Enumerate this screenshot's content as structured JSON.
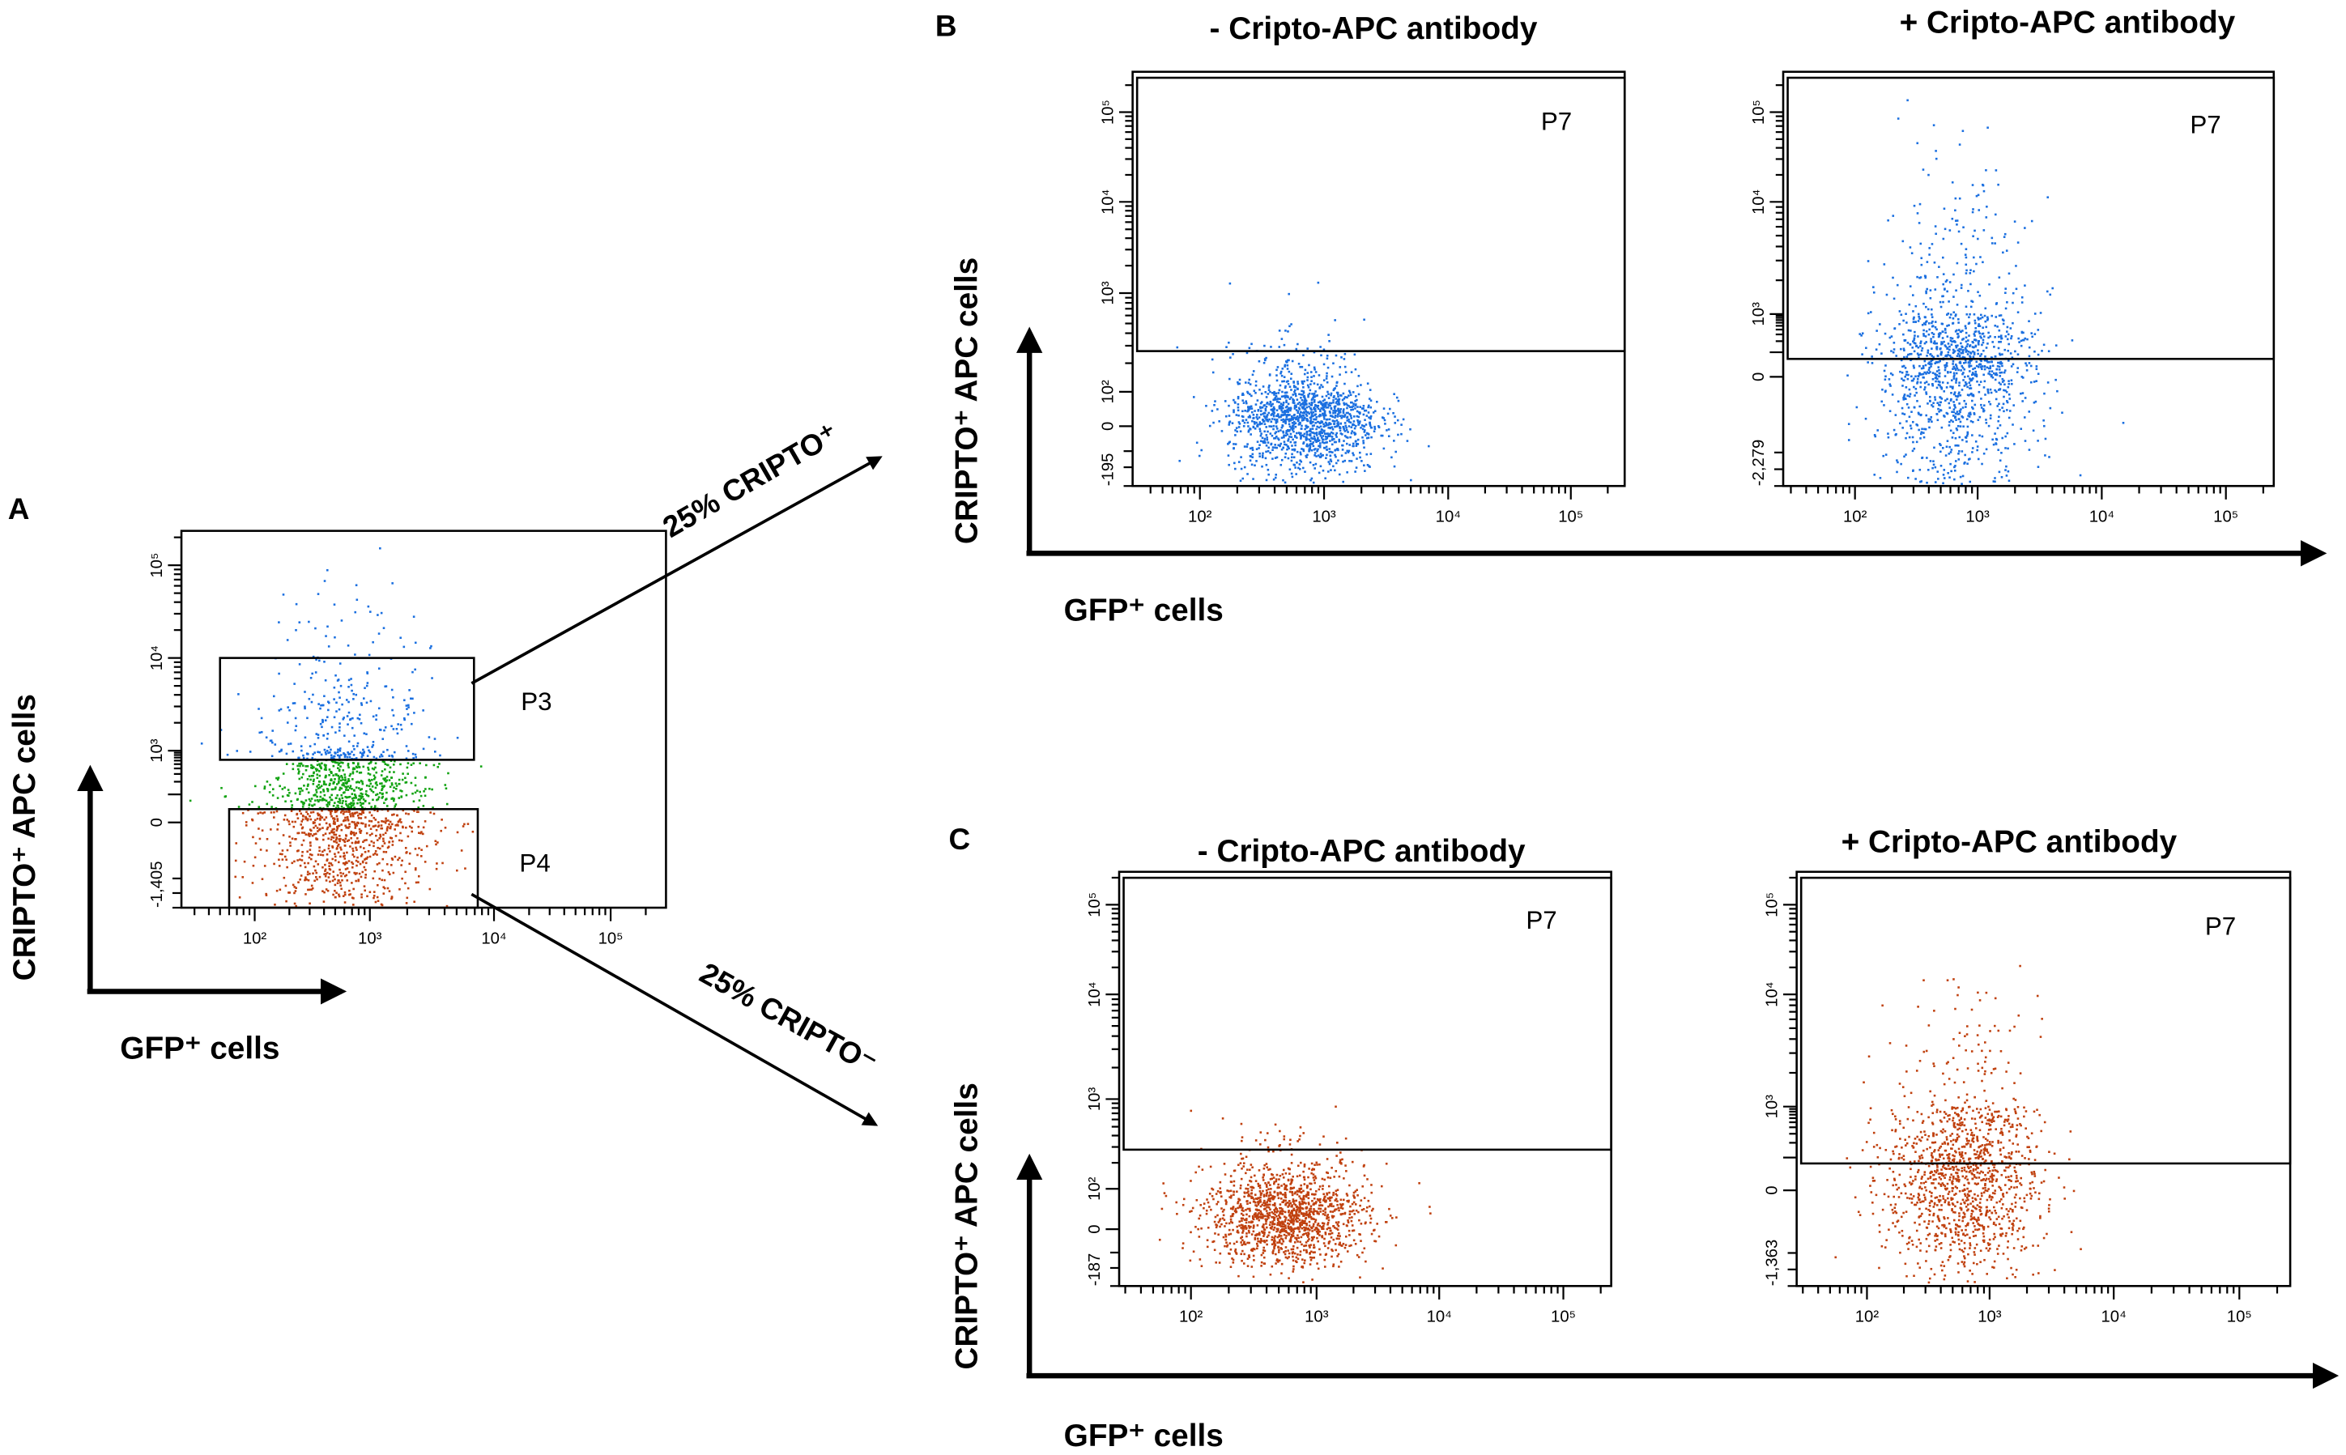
{
  "panels": {
    "A": {
      "letter": "A",
      "arrow_up_label": "25% CRIPTO⁺",
      "arrow_down_label": "25% CRIPTO⁻",
      "y_axis_label": "CRIPTO⁺ APC cells",
      "x_axis_label": "GFP⁺ cells"
    },
    "B": {
      "letter": "B",
      "y_axis_label": "CRIPTO⁺ APC cells",
      "x_axis_label": "GFP⁺ cells"
    },
    "C": {
      "letter": "C",
      "y_axis_label": "CRIPTO⁺ APC cells",
      "x_axis_label": "GFP⁺ cells"
    }
  },
  "colors": {
    "high": "#1a6fe0",
    "mid": "#12a312",
    "low": "#c0410f",
    "axis": "#000000"
  },
  "chart_data": [
    {
      "id": "A",
      "type": "scatter",
      "title": "",
      "x_scale": "log",
      "y_scale": "biexponential",
      "x_ticks": [
        {
          "value": 100,
          "label": "10²"
        },
        {
          "value": 1000,
          "label": "10³"
        },
        {
          "value": 10000,
          "label": "10⁴"
        },
        {
          "value": 100000,
          "label": "10⁵"
        }
      ],
      "y_ticks": [
        {
          "value": -1405,
          "label": "-1,405"
        },
        {
          "value": 0,
          "label": "0"
        },
        {
          "value": 1000,
          "label": "10³"
        },
        {
          "value": 10000,
          "label": "10⁴"
        },
        {
          "value": 100000,
          "label": "10⁵"
        }
      ],
      "gates": [
        {
          "label": "P3",
          "x_range": [
            50,
            6900
          ],
          "y_range": [
            625,
            10000
          ]
        },
        {
          "label": "P4",
          "x_range": [
            60,
            7400
          ],
          "y_range": [
            -1405,
            37
          ]
        }
      ],
      "population": {
        "events": 1600,
        "x_range": [
          155,
          2300
        ],
        "y_range": [
          -1200,
          4700
        ],
        "coloring": "by-gate: P3 blue, between gates green, P4 red"
      }
    },
    {
      "id": "B1",
      "type": "scatter",
      "title": "- Cripto-APC antibody",
      "x_scale": "log",
      "y_scale": "biexponential",
      "x_ticks": [
        {
          "value": 100,
          "label": "10²"
        },
        {
          "value": 1000,
          "label": "10³"
        },
        {
          "value": 10000,
          "label": "10⁴"
        },
        {
          "value": 100000,
          "label": "10⁵"
        }
      ],
      "y_ticks": [
        {
          "value": -195,
          "label": "-195"
        },
        {
          "value": 0,
          "label": "0"
        },
        {
          "value": 100,
          "label": "10²"
        },
        {
          "value": 1000,
          "label": "10³"
        },
        {
          "value": 10000,
          "label": "10⁴"
        },
        {
          "value": 100000,
          "label": "10⁵"
        }
      ],
      "gates": [
        {
          "label": "P7",
          "y_min": 265
        }
      ],
      "population": {
        "events": 1400,
        "x_range": [
          220,
          2200
        ],
        "y_range": [
          -90,
          180
        ],
        "color": "high"
      }
    },
    {
      "id": "B2",
      "type": "scatter",
      "title": "+ Cripto-APC antibody",
      "x_scale": "log",
      "y_scale": "biexponential",
      "x_ticks": [
        {
          "value": 100,
          "label": "10²"
        },
        {
          "value": 1000,
          "label": "10³"
        },
        {
          "value": 10000,
          "label": "10⁴"
        },
        {
          "value": 100000,
          "label": "10⁵"
        }
      ],
      "y_ticks": [
        {
          "value": -2279,
          "label": "-2,279"
        },
        {
          "value": 0,
          "label": "0"
        },
        {
          "value": 1000,
          "label": "10³"
        },
        {
          "value": 10000,
          "label": "10⁴"
        },
        {
          "value": 100000,
          "label": "10⁵"
        }
      ],
      "gates": [
        {
          "label": "P7",
          "y_min": 63
        }
      ],
      "population": {
        "events": 1300,
        "x_range": [
          200,
          2200
        ],
        "y_range": [
          -1200,
          3400
        ],
        "color": "high"
      }
    },
    {
      "id": "C1",
      "type": "scatter",
      "title": "- Cripto-APC antibody",
      "x_scale": "log",
      "y_scale": "biexponential",
      "x_ticks": [
        {
          "value": 100,
          "label": "10²"
        },
        {
          "value": 1000,
          "label": "10³"
        },
        {
          "value": 10000,
          "label": "10⁴"
        },
        {
          "value": 100000,
          "label": "10⁵"
        }
      ],
      "y_ticks": [
        {
          "value": -187,
          "label": "-187"
        },
        {
          "value": 0,
          "label": "0"
        },
        {
          "value": 100,
          "label": "10²"
        },
        {
          "value": 1000,
          "label": "10³"
        },
        {
          "value": 10000,
          "label": "10⁴"
        },
        {
          "value": 100000,
          "label": "10⁵"
        }
      ],
      "gates": [
        {
          "label": "P7",
          "y_min": 280
        }
      ],
      "population": {
        "events": 1400,
        "x_range": [
          170,
          2000
        ],
        "y_range": [
          -60,
          180
        ],
        "color": "low"
      }
    },
    {
      "id": "C2",
      "type": "scatter",
      "title": "+ Cripto-APC antibody",
      "x_scale": "log",
      "y_scale": "biexponential",
      "x_ticks": [
        {
          "value": 100,
          "label": "10²"
        },
        {
          "value": 1000,
          "label": "10³"
        },
        {
          "value": 10000,
          "label": "10⁴"
        },
        {
          "value": 100000,
          "label": "10⁵"
        }
      ],
      "y_ticks": [
        {
          "value": -1363,
          "label": "-1,363"
        },
        {
          "value": 0,
          "label": "0"
        },
        {
          "value": 1000,
          "label": "10³"
        },
        {
          "value": 10000,
          "label": "10⁴"
        },
        {
          "value": 100000,
          "label": "10⁵"
        }
      ],
      "gates": [
        {
          "label": "P7",
          "y_min": 74
        }
      ],
      "population": {
        "events": 1300,
        "x_range": [
          185,
          2000
        ],
        "y_range": [
          -570,
          1850
        ],
        "color": "low"
      }
    }
  ]
}
